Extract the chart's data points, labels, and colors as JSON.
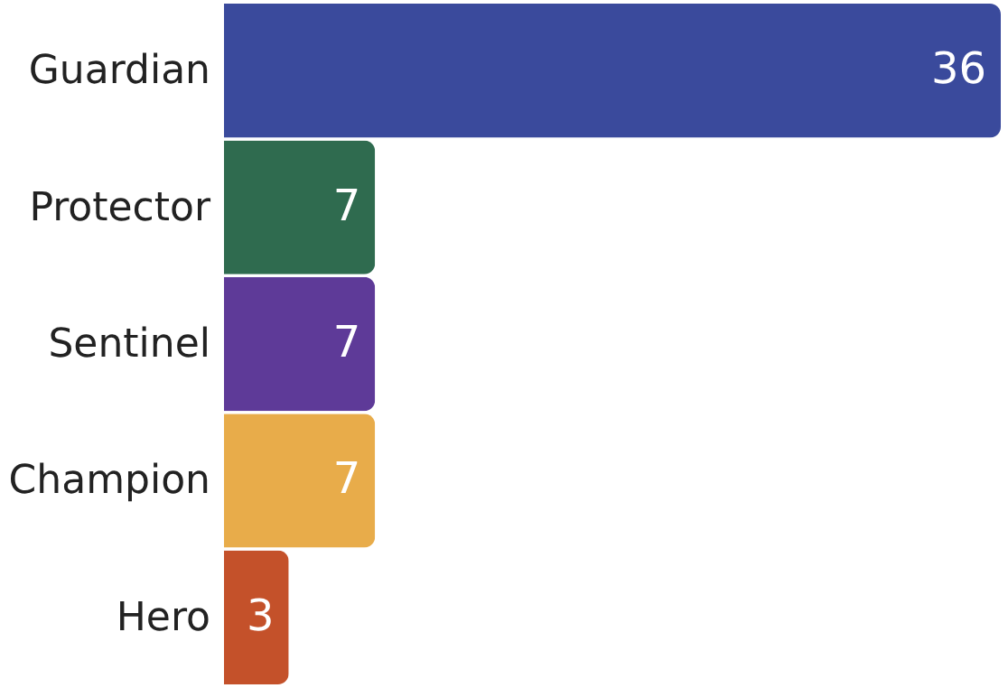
{
  "chart_data": {
    "type": "bar",
    "orientation": "horizontal",
    "categories": [
      "Guardian",
      "Protector",
      "Sentinel",
      "Champion",
      "Hero"
    ],
    "values": [
      36,
      7,
      7,
      7,
      3
    ],
    "colors": [
      "#3a4a9c",
      "#2f6b4f",
      "#5e3a98",
      "#e8ac4a",
      "#c4512a"
    ],
    "data_labels": true,
    "tick_labels": "y"
  }
}
